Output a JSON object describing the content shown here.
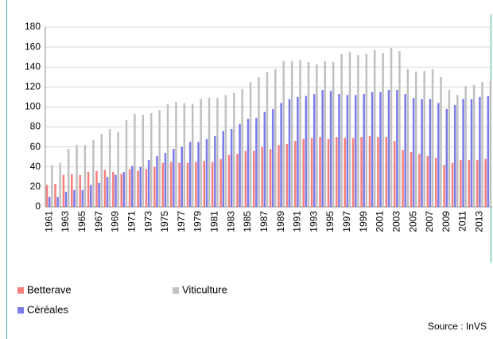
{
  "chart_data": {
    "type": "bar",
    "categories": [
      "1961",
      null,
      "1963",
      null,
      "1965",
      null,
      "1967",
      null,
      "1969",
      null,
      "1971",
      null,
      "1973",
      null,
      "1975",
      null,
      "1977",
      null,
      "1979",
      null,
      "1981",
      null,
      "1983",
      null,
      "1985",
      null,
      "1987",
      null,
      "1989",
      null,
      "1991",
      null,
      "1993",
      null,
      "1995",
      null,
      "1997",
      null,
      "1999",
      null,
      "2001",
      null,
      "2003",
      null,
      "2005",
      null,
      "2007",
      null,
      "2009",
      null,
      "2011",
      null,
      "2013",
      null
    ],
    "series": [
      {
        "name": "Betterave",
        "color": "#f4807d",
        "values": [
          22,
          23,
          32,
          33,
          32,
          35,
          36,
          37,
          35,
          33,
          38,
          36,
          38,
          40,
          44,
          45,
          44,
          44,
          45,
          46,
          45,
          48,
          52,
          53,
          56,
          56,
          60,
          58,
          62,
          63,
          66,
          68,
          69,
          70,
          68,
          70,
          69,
          69,
          70,
          71,
          70,
          70,
          66,
          57,
          55,
          53,
          51,
          49,
          42,
          44,
          47,
          47,
          47,
          48
        ]
      },
      {
        "name": "Céréales",
        "color": "#7b7bea",
        "values": [
          10,
          10,
          15,
          17,
          17,
          22,
          24,
          30,
          32,
          35,
          41,
          40,
          47,
          51,
          54,
          58,
          60,
          65,
          65,
          68,
          71,
          76,
          78,
          83,
          88,
          89,
          95,
          98,
          104,
          108,
          110,
          111,
          113,
          117,
          116,
          113,
          112,
          112,
          113,
          115,
          115,
          117,
          117,
          113,
          109,
          108,
          108,
          104,
          98,
          102,
          108,
          108,
          110,
          111
        ]
      },
      {
        "name": "Viticulture",
        "color": "#c0c0c0",
        "values": [
          42,
          44,
          58,
          62,
          62,
          67,
          73,
          78,
          75,
          87,
          93,
          92,
          94,
          97,
          103,
          105,
          104,
          103,
          108,
          109,
          109,
          112,
          114,
          118,
          125,
          130,
          135,
          138,
          146,
          146,
          147,
          145,
          143,
          146,
          145,
          153,
          155,
          152,
          153,
          157,
          154,
          159,
          156,
          138,
          135,
          136,
          138,
          130,
          117,
          112,
          121,
          122,
          125,
          126
        ]
      }
    ],
    "ylim": [
      0,
      180
    ],
    "yticks": [
      0,
      20,
      40,
      60,
      80,
      100,
      120,
      140,
      160,
      180
    ],
    "grid": true,
    "source": "Source : InVS"
  }
}
